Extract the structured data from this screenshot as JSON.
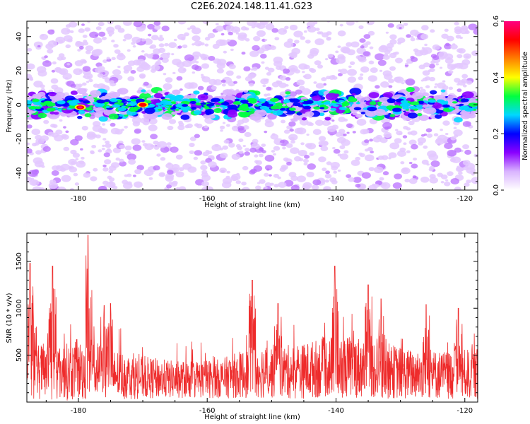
{
  "title": "C2E6.2024.148.11.41.G23",
  "chart_data": [
    {
      "type": "heatmap",
      "title": "C2E6.2024.148.11.41.G23",
      "xlabel": "Height of straight line (km)",
      "ylabel": "Frequency (Hz)",
      "xlim": [
        -188,
        -118
      ],
      "ylim": [
        -50,
        49
      ],
      "xticks": [
        -180,
        -160,
        -140,
        -120
      ],
      "yticks": [
        -40,
        -20,
        0,
        20,
        40
      ],
      "colorbar": {
        "label": "Normalized spectral amplitude",
        "range": [
          0,
          0.6
        ],
        "ticks": [
          "0.0",
          "0.2",
          "0.4",
          "0.6"
        ],
        "colors": [
          "#ffffff",
          "#d9b3ff",
          "#8a00ff",
          "#0000ff",
          "#00d8ff",
          "#00ff40",
          "#ffff00",
          "#ff8000",
          "#ff0000",
          "#ff0080"
        ]
      },
      "features": {
        "band_center_hz": 0,
        "band_halfwidth_hz": 7,
        "hotspots": [
          {
            "x": -179.7,
            "y": -1.5,
            "value": 0.6
          },
          {
            "x": -170,
            "y": 0,
            "value": 0.55
          }
        ]
      }
    },
    {
      "type": "line",
      "xlabel": "Height of straight line (km)",
      "ylabel": "SNR (10 * v/v)",
      "xlim": [
        -188,
        -118
      ],
      "ylim": [
        0,
        1800
      ],
      "xticks": [
        -180,
        -160,
        -140,
        -120
      ],
      "yticks": [
        500,
        1000,
        1500
      ],
      "color": "#ee2b2b",
      "peaks": [
        {
          "x": -187.5,
          "y": 1480
        },
        {
          "x": -184,
          "y": 1450
        },
        {
          "x": -178.5,
          "y": 1780
        },
        {
          "x": -176,
          "y": 1030
        },
        {
          "x": -175,
          "y": 1050
        },
        {
          "x": -153,
          "y": 1300
        },
        {
          "x": -149,
          "y": 1050
        },
        {
          "x": -140.2,
          "y": 1450
        },
        {
          "x": -135,
          "y": 1250
        },
        {
          "x": -133,
          "y": 1100
        },
        {
          "x": -126,
          "y": 1040
        },
        {
          "x": -121,
          "y": 1000
        }
      ],
      "envelope": [
        {
          "x": -188,
          "mean": 330,
          "amp": 300
        },
        {
          "x": -183,
          "mean": 320,
          "amp": 300
        },
        {
          "x": -178,
          "mean": 340,
          "amp": 330
        },
        {
          "x": -172,
          "mean": 270,
          "amp": 240
        },
        {
          "x": -165,
          "mean": 240,
          "amp": 200
        },
        {
          "x": -158,
          "mean": 250,
          "amp": 210
        },
        {
          "x": -152,
          "mean": 330,
          "amp": 290
        },
        {
          "x": -146,
          "mean": 320,
          "amp": 290
        },
        {
          "x": -141,
          "mean": 380,
          "amp": 330
        },
        {
          "x": -135,
          "mean": 370,
          "amp": 330
        },
        {
          "x": -129,
          "mean": 300,
          "amp": 270
        },
        {
          "x": -123,
          "mean": 290,
          "amp": 260
        },
        {
          "x": -118,
          "mean": 300,
          "amp": 270
        }
      ]
    }
  ]
}
